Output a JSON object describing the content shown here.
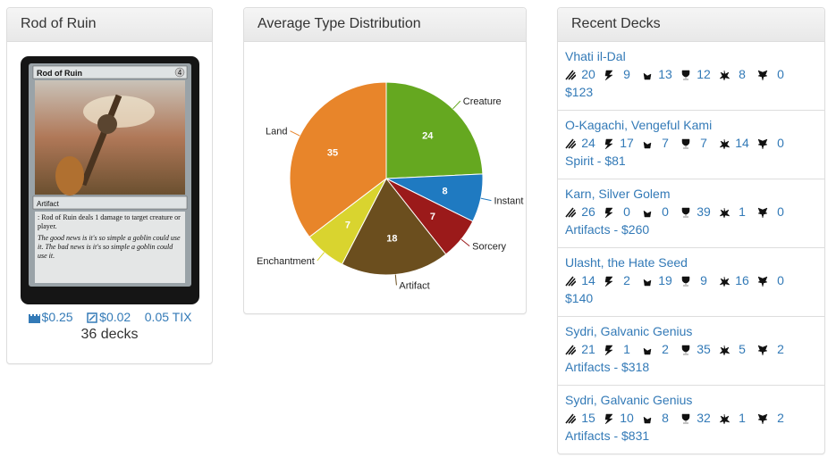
{
  "card_panel": {
    "title": "Rod of Ruin",
    "card": {
      "name": "Rod of Ruin",
      "mana": "4",
      "type_line": "Artifact",
      "rules": ": Rod of Ruin deals 1 damage to target creature or player.",
      "flavor": "The good news is it's so simple a goblin could use it. The bad news is it's so simple a goblin could use it."
    },
    "prices": [
      "$0.25",
      "$0.02",
      "0.05 TIX"
    ],
    "decks": "36 decks"
  },
  "chart_data": {
    "type": "pie",
    "title": "Average Type Distribution",
    "categories": [
      "Creature",
      "Instant",
      "Sorcery",
      "Artifact",
      "Enchantment",
      "Land"
    ],
    "values": [
      24,
      8,
      7,
      18,
      7,
      35
    ],
    "colors": [
      "#65a820",
      "#1f7ac1",
      "#9b1a1a",
      "#6b4e1e",
      "#d9d42f",
      "#e8852a"
    ]
  },
  "recent_decks": {
    "title": "Recent Decks",
    "decks": [
      {
        "name": "Vhati il-Dal",
        "stats": [
          20,
          9,
          13,
          12,
          8,
          0
        ],
        "info": "$123"
      },
      {
        "name": "O-Kagachi, Vengeful Kami",
        "stats": [
          24,
          17,
          7,
          7,
          14,
          0
        ],
        "info": "Spirit - $81"
      },
      {
        "name": "Karn, Silver Golem",
        "stats": [
          26,
          0,
          0,
          39,
          1,
          0
        ],
        "info": "Artifacts - $260"
      },
      {
        "name": "Ulasht, the Hate Seed",
        "stats": [
          14,
          2,
          19,
          9,
          16,
          0
        ],
        "info": "$140"
      },
      {
        "name": "Sydri, Galvanic Genius",
        "stats": [
          21,
          1,
          2,
          35,
          5,
          2
        ],
        "info": "Artifacts - $318"
      },
      {
        "name": "Sydri, Galvanic Genius",
        "stats": [
          15,
          10,
          8,
          32,
          1,
          2
        ],
        "info": "Artifacts - $831"
      }
    ]
  }
}
